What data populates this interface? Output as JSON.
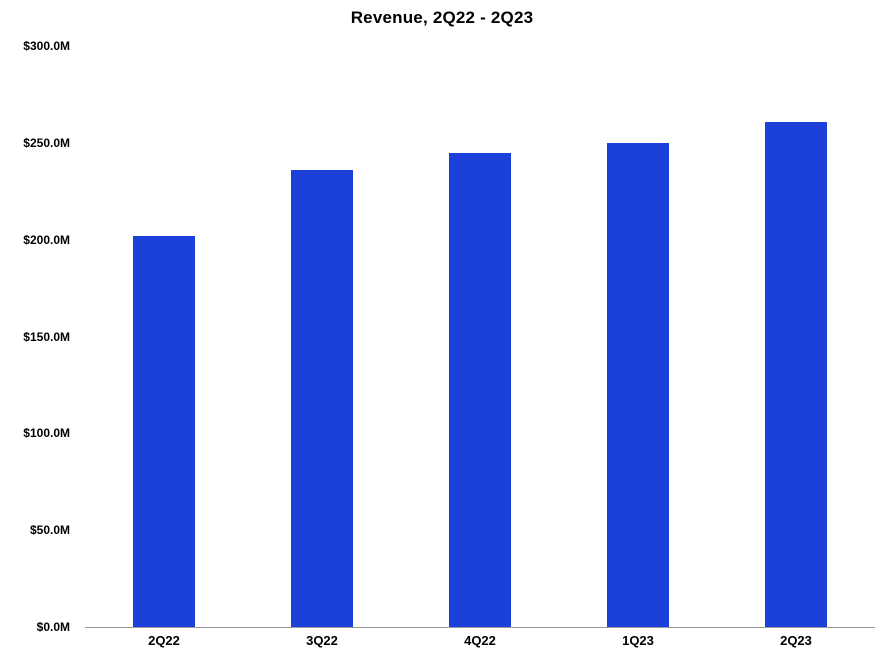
{
  "chart_data": {
    "type": "bar",
    "title": "Revenue, 2Q22 - 2Q23",
    "categories": [
      "2Q22",
      "3Q22",
      "4Q22",
      "1Q23",
      "2Q23"
    ],
    "values": [
      202,
      236,
      245,
      250,
      261
    ],
    "unit": "$M",
    "ylim": [
      0,
      300
    ],
    "yticks": [
      0,
      50,
      100,
      150,
      200,
      250,
      300
    ],
    "ytick_labels": [
      "$0.0M",
      "$50.0M",
      "$100.0M",
      "$150.0M",
      "$200.0M",
      "$250.0M",
      "$300.0M"
    ],
    "bar_color": "#1c40da",
    "axis_line_color": "#999999",
    "grid": false,
    "legend_position": "none"
  }
}
